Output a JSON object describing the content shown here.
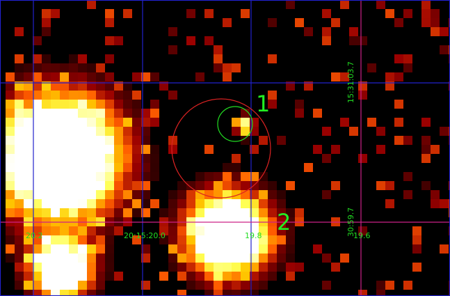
{
  "labels": {
    "region_1": "1",
    "region_2": "2"
  },
  "ra_ticks": [
    "20.2",
    "20:15:20.0",
    "19.8",
    "19.6"
  ],
  "dec_ticks": [
    "15:31:03.7",
    "30:59.7"
  ]
}
